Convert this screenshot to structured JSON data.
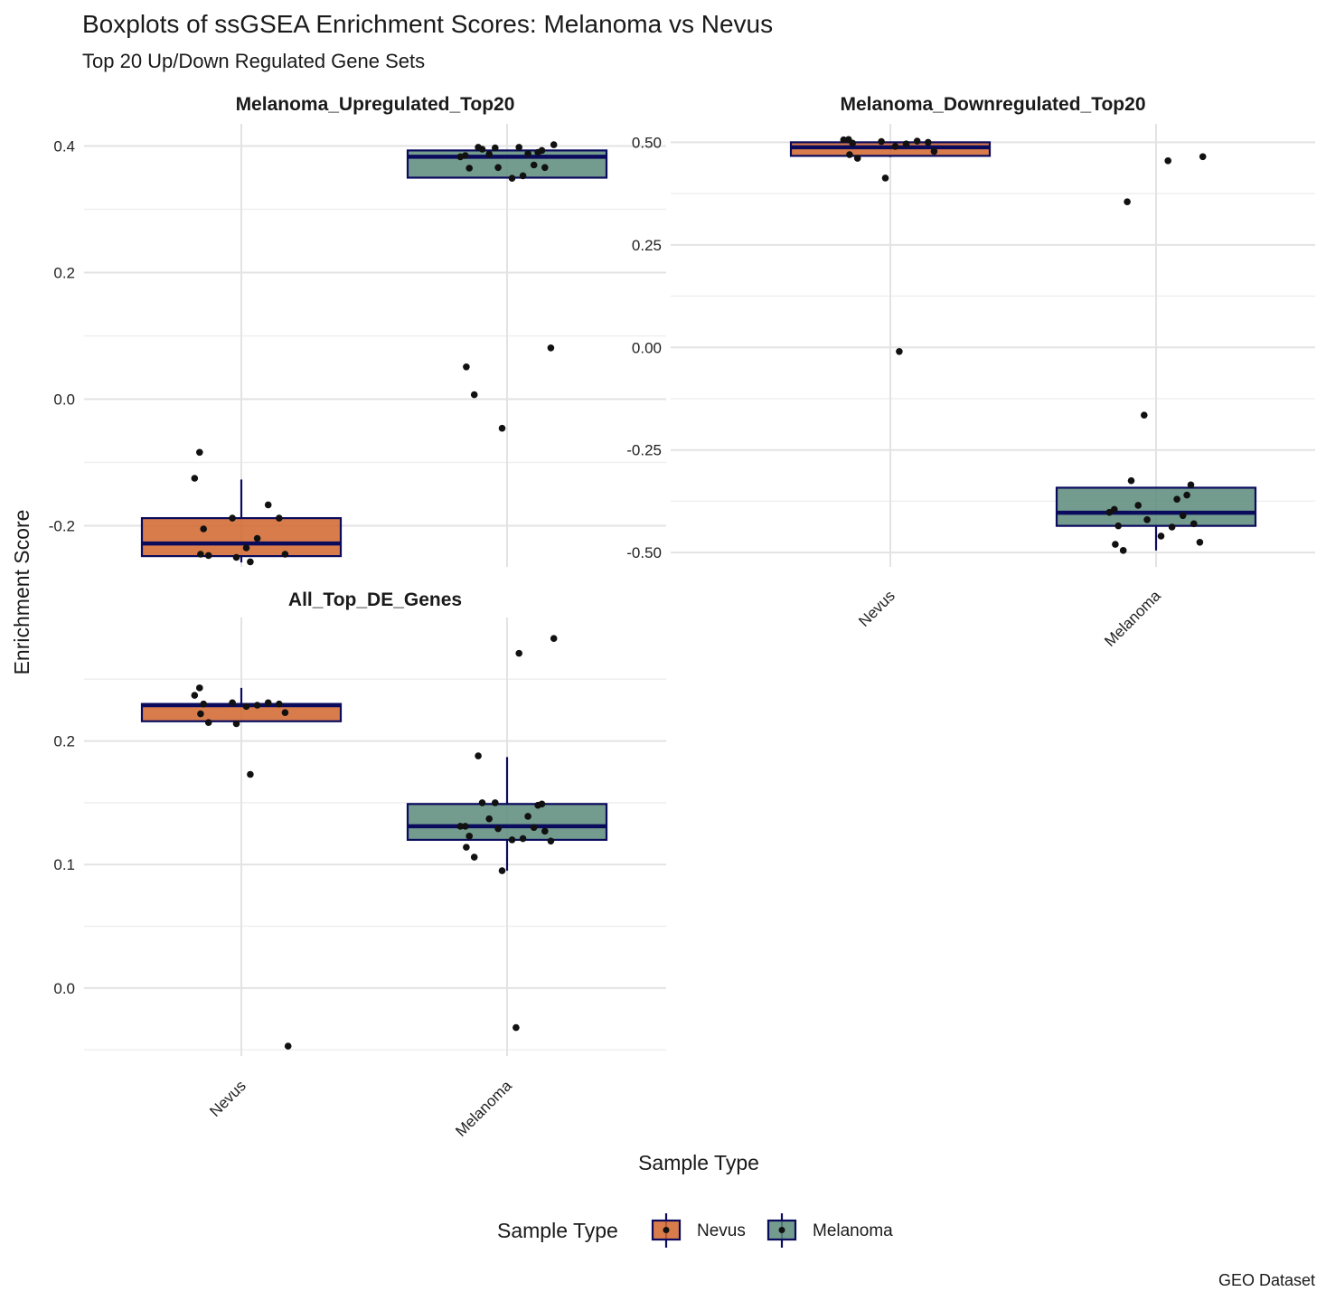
{
  "chart_data": {
    "type": "boxplot",
    "title": "Boxplots of ssGSEA Enrichment Scores: Melanoma vs Nevus",
    "subtitle": "Top 20 Up/Down Regulated Gene Sets",
    "xlabel": "Sample Type",
    "ylabel": "Enrichment Score",
    "caption": "GEO Dataset",
    "categories": [
      "Nevus",
      "Melanoma"
    ],
    "legend": {
      "title": "Sample Type",
      "position": "bottom",
      "items": [
        {
          "label": "Nevus",
          "color": "#d2652d"
        },
        {
          "label": "Melanoma",
          "color": "#5b8a7a"
        }
      ]
    },
    "colors": {
      "Nevus": "#d2652d",
      "Melanoma": "#5b8a7a",
      "box_line": "#0b0b5e",
      "point": "#111111"
    },
    "grid": true,
    "panels": [
      {
        "title": "Melanoma_Upregulated_Top20",
        "ylim": [
          -0.265,
          0.435
        ],
        "yticks": [
          -0.2,
          0.0,
          0.2,
          0.4
        ],
        "yticklabels": [
          "-0.2",
          "0.0",
          "0.2",
          "0.4"
        ],
        "show_x_labels": false,
        "boxes": [
          {
            "group": "Nevus",
            "whisker_low": -0.258,
            "q1": -0.248,
            "median": -0.228,
            "q3": -0.188,
            "whisker_high": -0.127
          },
          {
            "group": "Melanoma",
            "whisker_low": 0.35,
            "q1": 0.35,
            "median": 0.383,
            "q3": 0.393,
            "whisker_high": 0.393
          }
        ],
        "points": [
          {
            "group": "Nevus",
            "values": [
              -0.084,
              -0.125,
              -0.167,
              -0.188,
              -0.188,
              -0.205,
              -0.22,
              -0.235,
              -0.245,
              -0.245,
              -0.247,
              -0.25,
              -0.257
            ]
          },
          {
            "group": "Melanoma",
            "values": [
              0.402,
              0.398,
              0.398,
              0.397,
              0.395,
              0.393,
              0.39,
              0.388,
              0.387,
              0.385,
              0.383,
              0.37,
              0.366,
              0.366,
              0.365,
              0.353,
              0.349,
              0.081,
              0.051,
              0.007,
              -0.046
            ]
          }
        ]
      },
      {
        "title": "Melanoma_Downregulated_Top20",
        "ylim": [
          -0.535,
          0.545
        ],
        "yticks": [
          -0.5,
          -0.25,
          0.0,
          0.25,
          0.5
        ],
        "yticklabels": [
          "-0.50",
          "-0.25",
          "0.00",
          "0.25",
          "0.50"
        ],
        "show_x_labels": true,
        "boxes": [
          {
            "group": "Nevus",
            "whisker_low": 0.464,
            "q1": 0.467,
            "median": 0.488,
            "q3": 0.5,
            "whisker_high": 0.5
          },
          {
            "group": "Melanoma",
            "whisker_low": -0.495,
            "q1": -0.435,
            "median": -0.403,
            "q3": -0.342,
            "whisker_high": -0.342
          }
        ],
        "points": [
          {
            "group": "Nevus",
            "values": [
              0.507,
              0.506,
              0.503,
              0.502,
              0.5,
              0.498,
              0.496,
              0.49,
              0.478,
              0.47,
              0.461,
              0.413,
              -0.01
            ]
          },
          {
            "group": "Melanoma",
            "values": [
              0.465,
              0.455,
              0.355,
              -0.165,
              -0.325,
              -0.335,
              -0.36,
              -0.37,
              -0.385,
              -0.395,
              -0.402,
              -0.41,
              -0.42,
              -0.43,
              -0.435,
              -0.438,
              -0.46,
              -0.475,
              -0.48,
              -0.495
            ]
          }
        ]
      },
      {
        "title": "All_Top_DE_Genes",
        "ylim": [
          -0.055,
          0.3
        ],
        "yticks": [
          0.0,
          0.1,
          0.2
        ],
        "yticklabels": [
          "0.0",
          "0.1",
          "0.2"
        ],
        "show_x_labels": true,
        "boxes": [
          {
            "group": "Nevus",
            "whisker_low": 0.216,
            "q1": 0.216,
            "median": 0.229,
            "q3": 0.23,
            "whisker_high": 0.243
          },
          {
            "group": "Melanoma",
            "whisker_low": 0.095,
            "q1": 0.12,
            "median": 0.131,
            "q3": 0.149,
            "whisker_high": 0.187
          }
        ],
        "points": [
          {
            "group": "Nevus",
            "values": [
              0.243,
              0.237,
              0.231,
              0.231,
              0.23,
              0.23,
              0.229,
              0.228,
              0.223,
              0.222,
              0.215,
              0.214,
              0.173,
              -0.047
            ]
          },
          {
            "group": "Melanoma",
            "values": [
              0.283,
              0.271,
              0.188,
              0.15,
              0.15,
              0.149,
              0.148,
              0.139,
              0.137,
              0.131,
              0.131,
              0.13,
              0.129,
              0.127,
              0.123,
              0.121,
              0.12,
              0.119,
              0.114,
              0.106,
              0.095,
              -0.032
            ]
          }
        ]
      }
    ]
  }
}
